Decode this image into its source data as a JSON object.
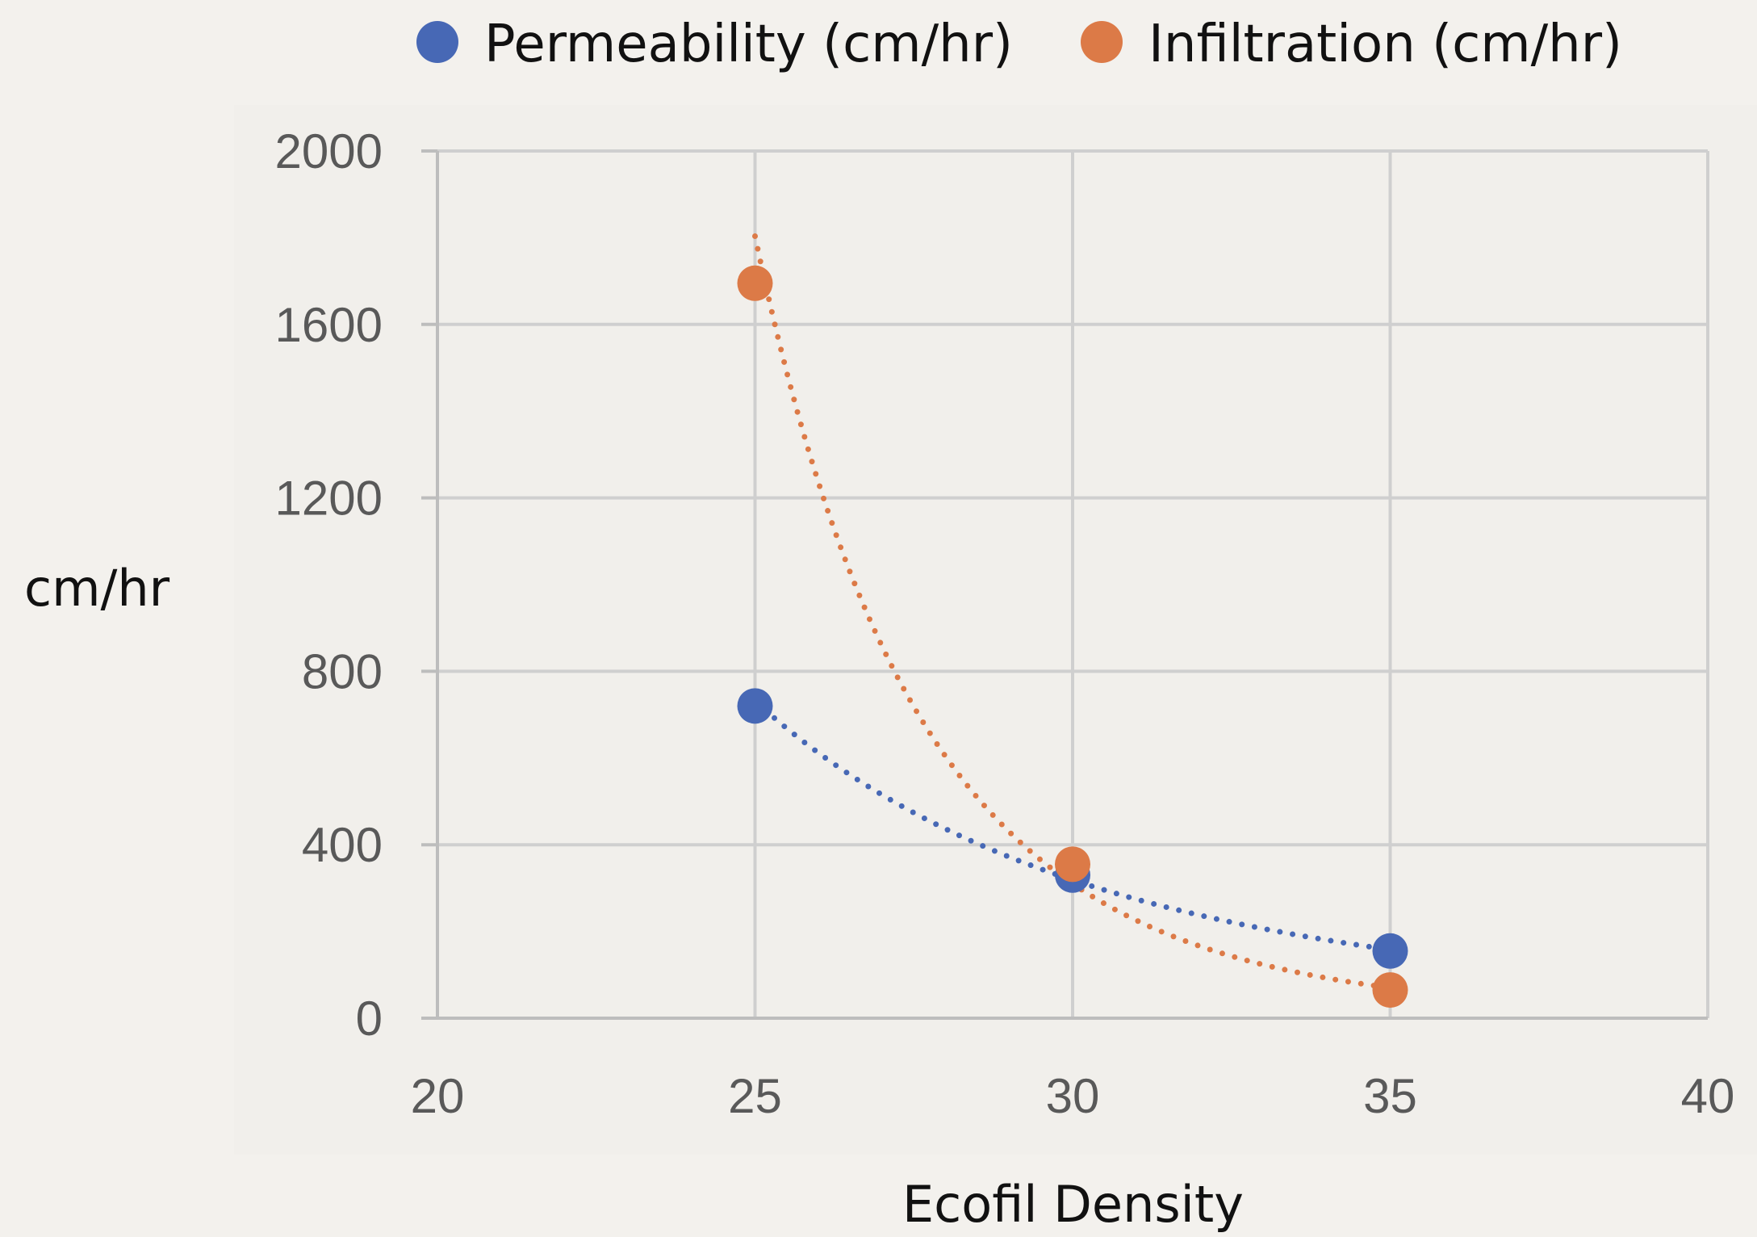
{
  "chart_data": {
    "type": "scatter",
    "xlabel": "Ecofil Density",
    "ylabel": "cm/hr",
    "xlim": [
      20,
      40
    ],
    "ylim": [
      0,
      2000
    ],
    "x_ticks": [
      "20",
      "25",
      "30",
      "35",
      "40"
    ],
    "y_ticks": [
      "0",
      "400",
      "800",
      "1200",
      "1600",
      "2000"
    ],
    "grid": true,
    "legend_position": "top",
    "trendlines": "dotted",
    "series": [
      {
        "name": "Permeability (cm/hr)",
        "color": "#4768b5",
        "points": [
          {
            "x": 25,
            "y": 720
          },
          {
            "x": 30,
            "y": 330
          },
          {
            "x": 35,
            "y": 155
          }
        ]
      },
      {
        "name": "Infiltration (cm/hr)",
        "color": "#dc7a47",
        "points": [
          {
            "x": 25,
            "y": 1695
          },
          {
            "x": 30,
            "y": 355
          },
          {
            "x": 35,
            "y": 65
          }
        ]
      }
    ]
  }
}
